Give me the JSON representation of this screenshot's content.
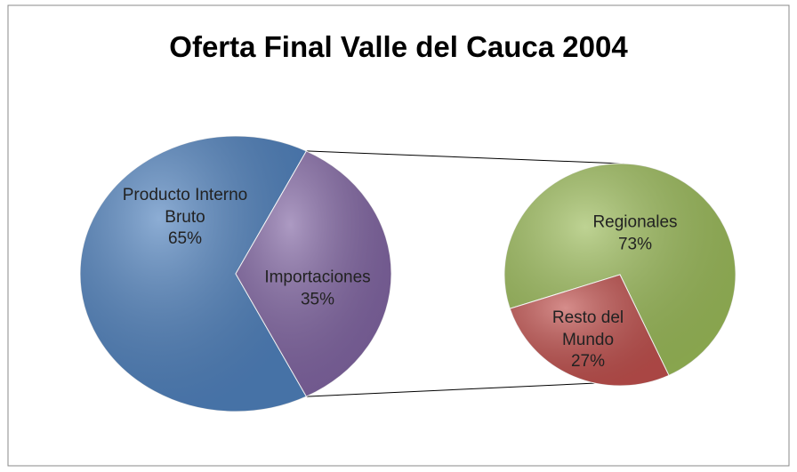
{
  "chart_data": {
    "type": "pie_of_pie",
    "title": "Oferta Final Valle del Cauca 2004",
    "categories": [
      "Producto Interno Bruto",
      "Importaciones"
    ],
    "values": [
      65,
      35
    ],
    "value_labels": [
      "65%",
      "35%"
    ],
    "colors": [
      "#4f81bd",
      "#8064a2"
    ],
    "breakdown": {
      "categories": [
        "Regionales",
        "Resto del Mundo"
      ],
      "values": [
        73,
        27
      ],
      "value_labels": [
        "73%",
        "27%"
      ],
      "colors": [
        "#9bbb59",
        "#c0504d"
      ]
    }
  }
}
